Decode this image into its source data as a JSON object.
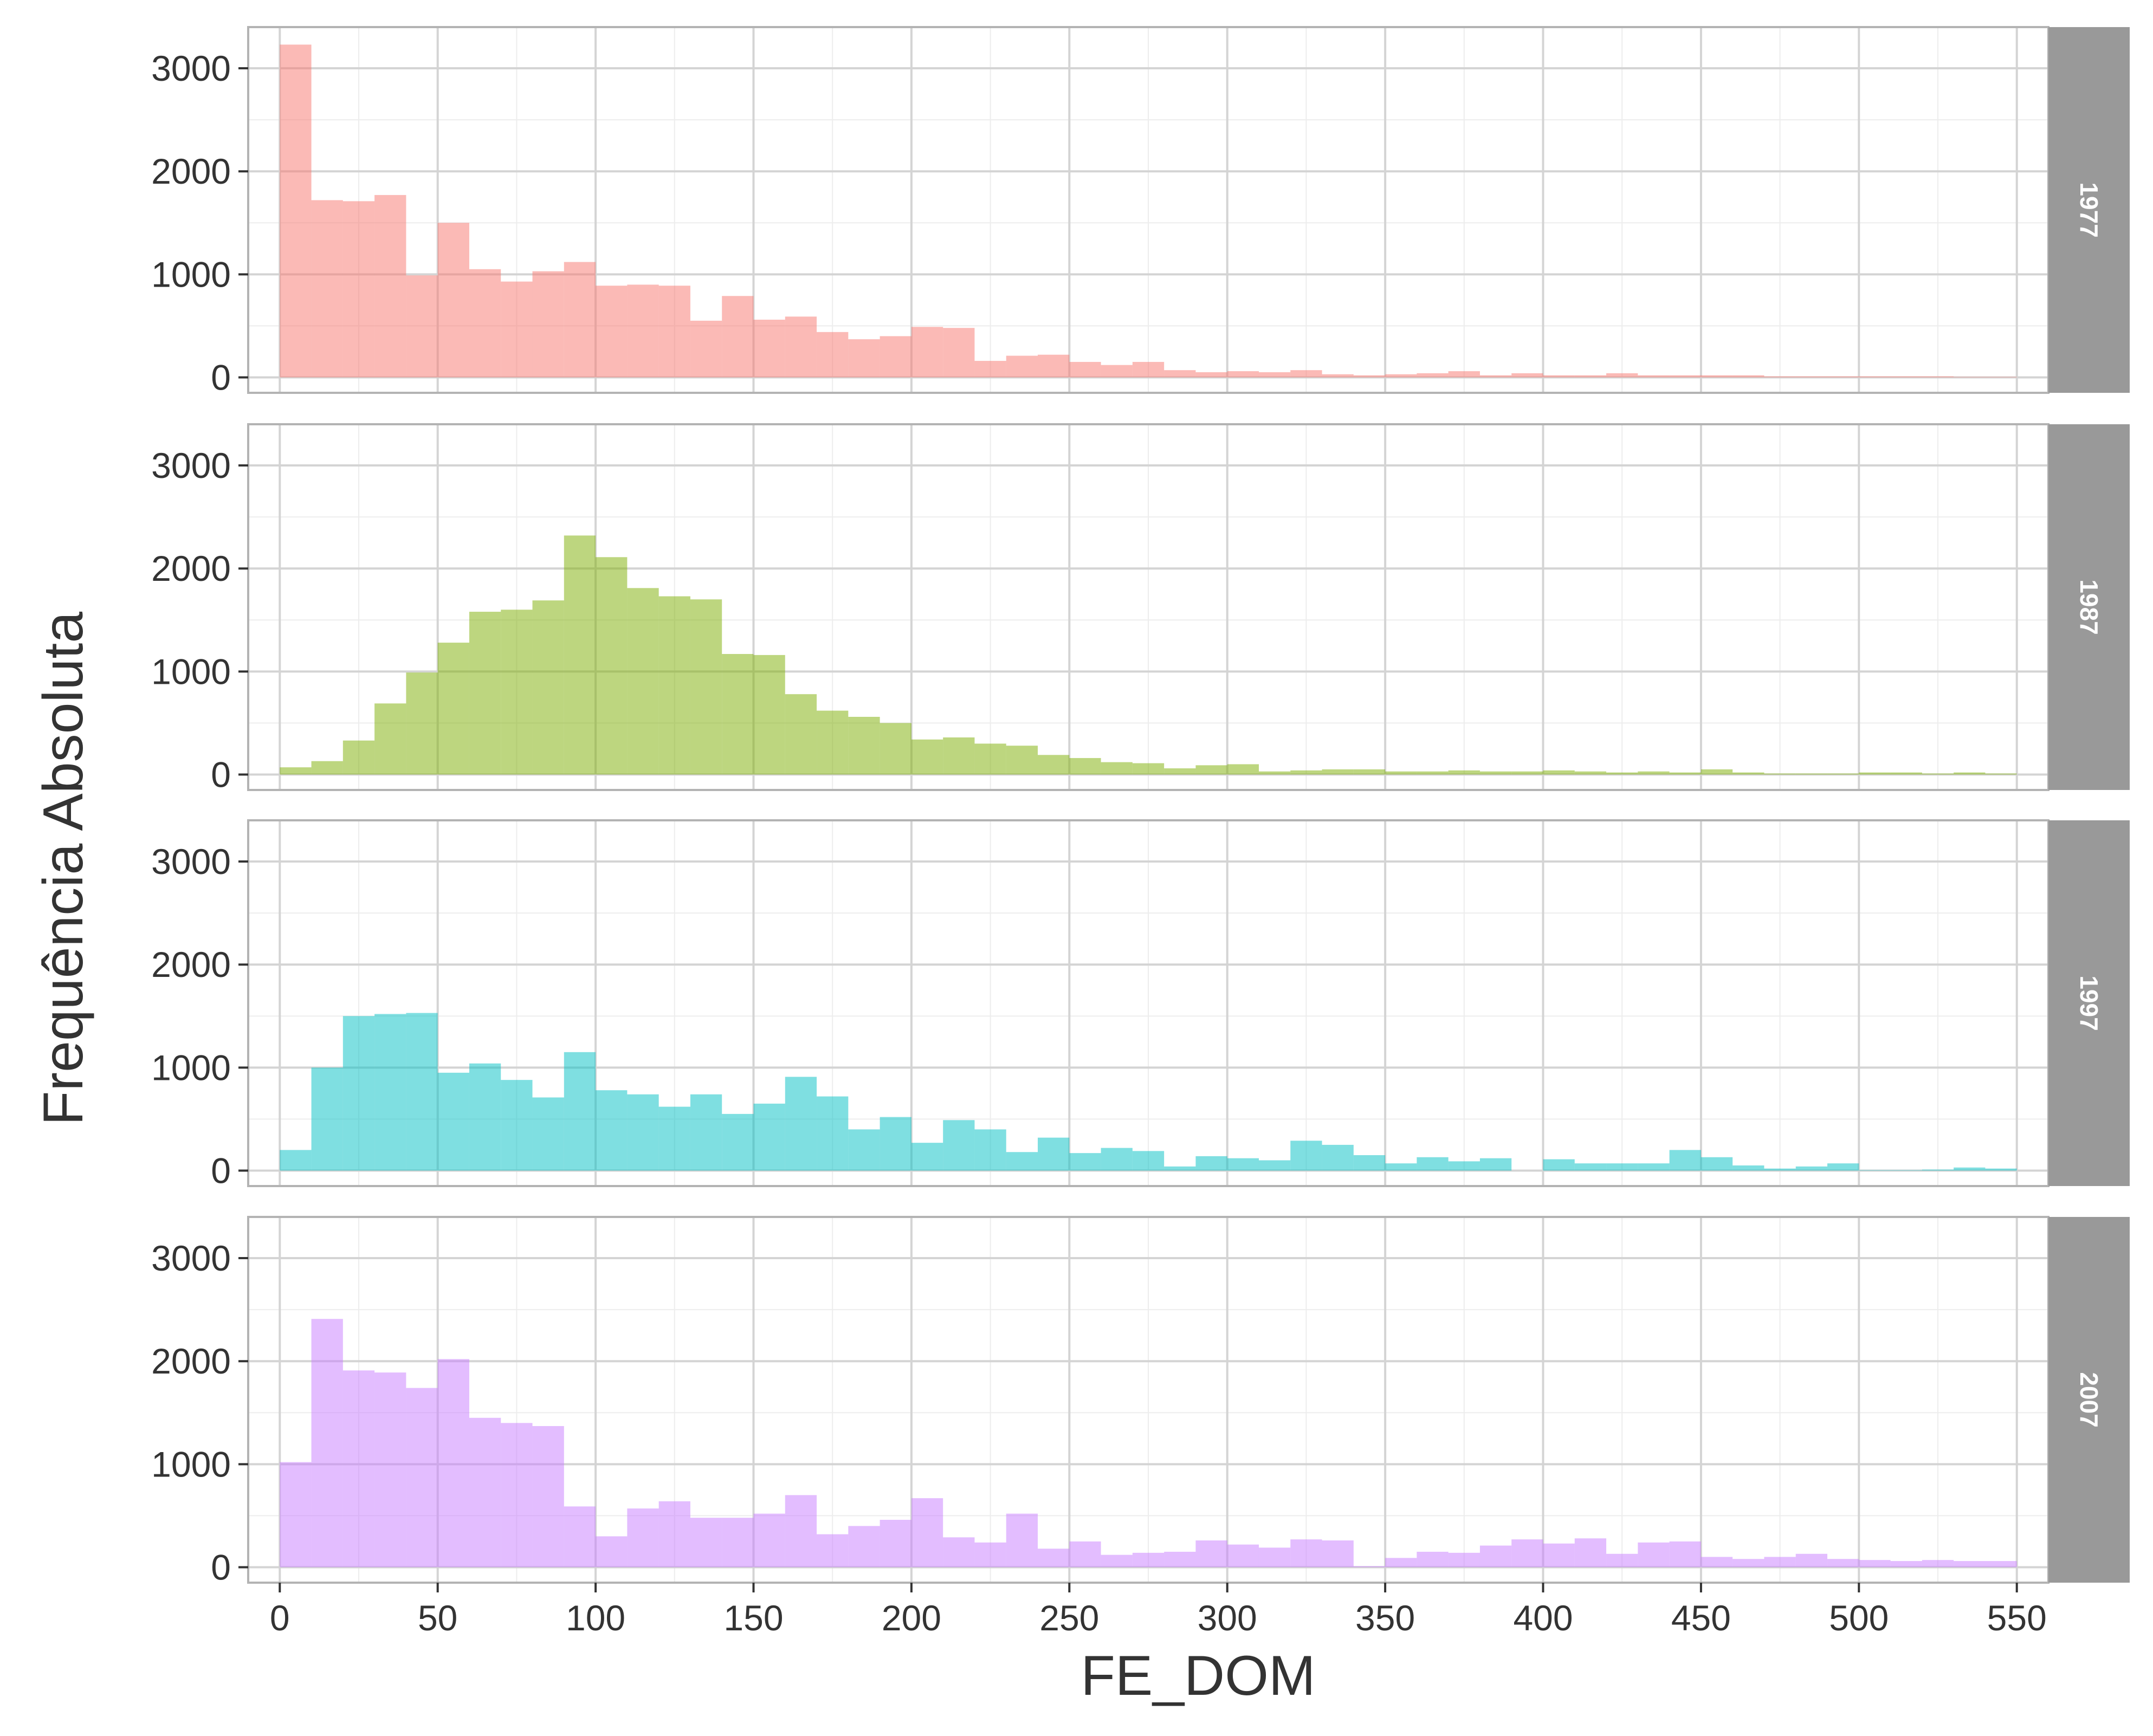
{
  "chart_data": {
    "type": "histogram",
    "facet_layout": "rows",
    "xlabel": "FE_DOM",
    "ylabel": "Frequência Absoluta",
    "xlim": [
      -10,
      560
    ],
    "ylim": [
      -150,
      3400
    ],
    "xticks": [
      0,
      50,
      100,
      150,
      200,
      250,
      300,
      350,
      400,
      450,
      500,
      550
    ],
    "yticks": [
      0,
      1000,
      2000,
      3000
    ],
    "bin_width": 10,
    "bin_starts": [
      0,
      10,
      20,
      30,
      40,
      50,
      60,
      70,
      80,
      90,
      100,
      110,
      120,
      130,
      140,
      150,
      160,
      170,
      180,
      190,
      200,
      210,
      220,
      230,
      240,
      250,
      260,
      270,
      280,
      290,
      300,
      310,
      320,
      330,
      340,
      350,
      360,
      370,
      380,
      390,
      400,
      410,
      420,
      430,
      440,
      450,
      460,
      470,
      480,
      490,
      500,
      510,
      520,
      530,
      540
    ],
    "grid": true,
    "legend": "none",
    "strip_color": "#999999",
    "panel_border_color": "#b3b3b3",
    "grid_color": "#d4d4d4",
    "series": [
      {
        "name": "1977",
        "color": "#F8766D",
        "values": [
          3230,
          1720,
          1710,
          1770,
          990,
          1500,
          1050,
          930,
          1030,
          1120,
          890,
          900,
          890,
          550,
          790,
          560,
          590,
          440,
          370,
          400,
          490,
          480,
          160,
          210,
          220,
          150,
          120,
          150,
          70,
          50,
          60,
          50,
          70,
          30,
          20,
          30,
          40,
          60,
          20,
          40,
          20,
          20,
          40,
          20,
          20,
          20,
          20,
          10,
          10,
          10,
          10,
          10,
          10,
          5,
          5
        ]
      },
      {
        "name": "1987",
        "color": "#7CAE00",
        "values": [
          70,
          130,
          330,
          690,
          990,
          1280,
          1580,
          1600,
          1690,
          2320,
          2110,
          1810,
          1730,
          1700,
          1170,
          1160,
          780,
          620,
          560,
          500,
          340,
          360,
          300,
          280,
          190,
          160,
          120,
          110,
          60,
          90,
          100,
          30,
          40,
          50,
          50,
          30,
          30,
          40,
          30,
          30,
          40,
          30,
          20,
          30,
          20,
          50,
          20,
          10,
          10,
          10,
          20,
          20,
          10,
          20,
          10
        ]
      },
      {
        "name": "1997",
        "color": "#00BFC4",
        "values": [
          200,
          1000,
          1500,
          1520,
          1530,
          950,
          1040,
          880,
          710,
          1150,
          780,
          740,
          620,
          740,
          550,
          650,
          910,
          720,
          400,
          520,
          270,
          490,
          400,
          180,
          320,
          170,
          220,
          190,
          40,
          140,
          120,
          100,
          290,
          250,
          150,
          70,
          130,
          90,
          120,
          0,
          110,
          70,
          70,
          70,
          200,
          130,
          50,
          20,
          40,
          70,
          5,
          5,
          10,
          30,
          20
        ]
      },
      {
        "name": "2007",
        "color": "#C77CFF",
        "values": [
          1020,
          2410,
          1910,
          1890,
          1740,
          2020,
          1450,
          1400,
          1370,
          590,
          300,
          570,
          640,
          480,
          480,
          520,
          700,
          320,
          400,
          460,
          670,
          290,
          240,
          520,
          180,
          250,
          120,
          140,
          150,
          260,
          220,
          190,
          270,
          260,
          10,
          90,
          150,
          140,
          210,
          270,
          230,
          280,
          130,
          240,
          250,
          100,
          80,
          100,
          130,
          80,
          70,
          60,
          70,
          60,
          60
        ]
      }
    ]
  }
}
